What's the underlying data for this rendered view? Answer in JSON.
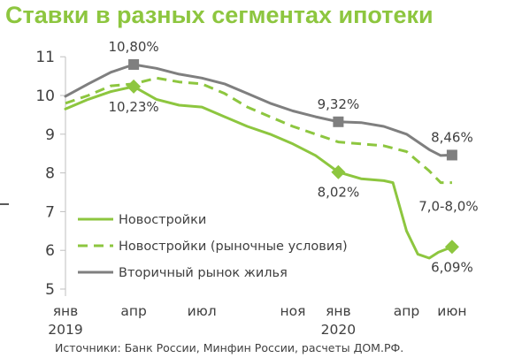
{
  "title": "Ставки в разных сегментах ипотеки",
  "source": "Источники: Банк России, Минфин России,  расчеты ДОМ.РФ.",
  "colors": {
    "green": "#8dc63f",
    "gray": "#7f7f7f",
    "axis": "#bfbfbf",
    "text": "#404040"
  },
  "chart_data": {
    "type": "line",
    "title": "Ставки в разных сегментах ипотеки",
    "ylim": [
      5,
      11
    ],
    "yticks": [
      "5",
      "6",
      "7",
      "8",
      "9",
      "10",
      "11"
    ],
    "xticks": [
      {
        "x": 0,
        "label": "янв",
        "sub": "2019"
      },
      {
        "x": 3,
        "label": "апр",
        "sub": ""
      },
      {
        "x": 6,
        "label": "июл",
        "sub": ""
      },
      {
        "x": 10,
        "label": "ноя",
        "sub": ""
      },
      {
        "x": 12,
        "label": "янв",
        "sub": "2020"
      },
      {
        "x": 15,
        "label": "апр",
        "sub": ""
      },
      {
        "x": 17,
        "label": "июн",
        "sub": ""
      }
    ],
    "legend_position": "bottom-left",
    "series": [
      {
        "name": "Новостройки",
        "style": "solid",
        "color": "#8dc63f",
        "points": [
          [
            0,
            9.65
          ],
          [
            1,
            9.9
          ],
          [
            2,
            10.1
          ],
          [
            3,
            10.23
          ],
          [
            4,
            9.9
          ],
          [
            5,
            9.75
          ],
          [
            6,
            9.7
          ],
          [
            7,
            9.45
          ],
          [
            8,
            9.2
          ],
          [
            9,
            9.0
          ],
          [
            10,
            8.75
          ],
          [
            11,
            8.45
          ],
          [
            12,
            8.02
          ],
          [
            13,
            7.85
          ],
          [
            14,
            7.8
          ],
          [
            14.4,
            7.75
          ],
          [
            15,
            6.5
          ],
          [
            15.5,
            5.9
          ],
          [
            16,
            5.8
          ],
          [
            16.4,
            5.95
          ],
          [
            17,
            6.09
          ]
        ],
        "markers": [
          {
            "x": 3,
            "y": 10.23,
            "label": "10,23%",
            "pos": "below"
          },
          {
            "x": 12,
            "y": 8.02,
            "label": "8,02%",
            "pos": "below"
          },
          {
            "x": 17,
            "y": 6.09,
            "label": "6,09%",
            "pos": "below"
          }
        ]
      },
      {
        "name": "Новостройки (рыночные условия)",
        "style": "dashed",
        "color": "#8dc63f",
        "points": [
          [
            0,
            9.8
          ],
          [
            1,
            10.0
          ],
          [
            2,
            10.25
          ],
          [
            3,
            10.3
          ],
          [
            4,
            10.45
          ],
          [
            5,
            10.35
          ],
          [
            6,
            10.3
          ],
          [
            7,
            10.05
          ],
          [
            8,
            9.7
          ],
          [
            9,
            9.45
          ],
          [
            10,
            9.2
          ],
          [
            11,
            9.0
          ],
          [
            12,
            8.8
          ],
          [
            13,
            8.75
          ],
          [
            14,
            8.7
          ],
          [
            15,
            8.55
          ],
          [
            16,
            8.05
          ],
          [
            16.5,
            7.75
          ],
          [
            17,
            7.75
          ]
        ],
        "markers": [],
        "end_label": "7,0-8,0%"
      },
      {
        "name": "Вторичный рынок жилья",
        "style": "solid",
        "color": "#7f7f7f",
        "points": [
          [
            0,
            9.98
          ],
          [
            1,
            10.3
          ],
          [
            2,
            10.6
          ],
          [
            3,
            10.8
          ],
          [
            4,
            10.7
          ],
          [
            5,
            10.55
          ],
          [
            6,
            10.45
          ],
          [
            7,
            10.3
          ],
          [
            8,
            10.05
          ],
          [
            9,
            9.8
          ],
          [
            10,
            9.6
          ],
          [
            11,
            9.45
          ],
          [
            12,
            9.32
          ],
          [
            13,
            9.3
          ],
          [
            14,
            9.2
          ],
          [
            15,
            9.0
          ],
          [
            16,
            8.6
          ],
          [
            16.5,
            8.45
          ],
          [
            17,
            8.46
          ]
        ],
        "markers": [
          {
            "x": 3,
            "y": 10.8,
            "label": "10,80%",
            "pos": "above"
          },
          {
            "x": 12,
            "y": 9.32,
            "label": "9,32%",
            "pos": "above"
          },
          {
            "x": 17,
            "y": 8.46,
            "label": "8,46%",
            "pos": "above"
          }
        ]
      }
    ]
  }
}
